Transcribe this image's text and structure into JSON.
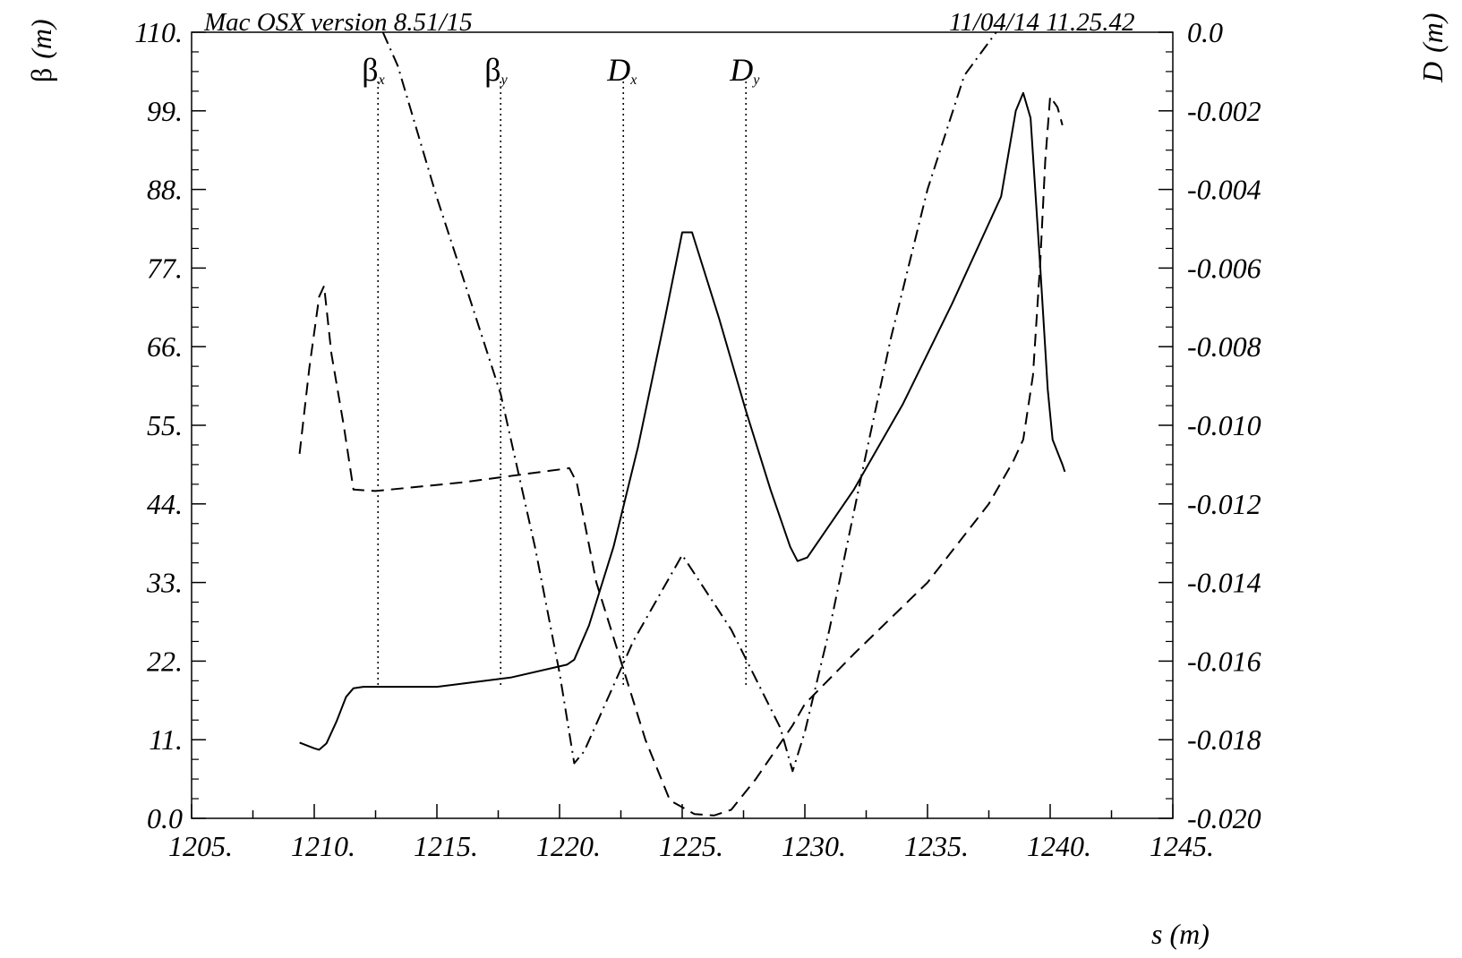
{
  "chart_data": {
    "type": "line",
    "header_left": "Mac OSX version 8.51/15",
    "header_right": "11/04/14  11.25.42",
    "xlabel": "s (m)",
    "ylabel_left_symbol": "β",
    "ylabel_left_unit": "(m)",
    "ylabel_right_symbol": "D",
    "ylabel_right_unit": "(m)",
    "xlim": [
      1205,
      1245
    ],
    "ylim_left": [
      0,
      110
    ],
    "ylim_right": [
      -0.02,
      0.0
    ],
    "x_ticks": [
      "1205.",
      "1210.",
      "1215.",
      "1220.",
      "1225.",
      "1230.",
      "1235.",
      "1240.",
      "1245."
    ],
    "y_left_ticks": [
      "0.0",
      "11.",
      "22.",
      "33.",
      "44.",
      "55.",
      "66.",
      "77.",
      "88.",
      "99.",
      "110."
    ],
    "y_right_ticks": [
      "-0.020",
      "-0.018",
      "-0.016",
      "-0.014",
      "-0.012",
      "-0.010",
      "-0.008",
      "-0.006",
      "-0.004",
      "-0.002",
      "0.0"
    ],
    "series": [
      {
        "name": "βx",
        "sub": "x",
        "style": "solid",
        "axis": "left",
        "label_x": 1212.6,
        "points": [
          [
            1209.4,
            10.6
          ],
          [
            1210.0,
            9.8
          ],
          [
            1210.2,
            9.6
          ],
          [
            1210.5,
            10.5
          ],
          [
            1210.9,
            13.5
          ],
          [
            1211.3,
            17.0
          ],
          [
            1211.6,
            18.2
          ],
          [
            1212.0,
            18.4
          ],
          [
            1215.0,
            18.4
          ],
          [
            1218.0,
            19.7
          ],
          [
            1220.3,
            21.5
          ],
          [
            1220.6,
            22.2
          ],
          [
            1221.2,
            27.0
          ],
          [
            1222.2,
            38.0
          ],
          [
            1223.2,
            52.0
          ],
          [
            1224.3,
            70.0
          ],
          [
            1225.0,
            82.0
          ],
          [
            1225.4,
            82.0
          ],
          [
            1226.5,
            70.0
          ],
          [
            1227.6,
            57.0
          ],
          [
            1228.6,
            46.0
          ],
          [
            1229.4,
            38.0
          ],
          [
            1229.7,
            36.0
          ],
          [
            1230.1,
            36.5
          ],
          [
            1232.0,
            46.0
          ],
          [
            1234.0,
            58.0
          ],
          [
            1236.0,
            72.0
          ],
          [
            1238.0,
            87.0
          ],
          [
            1238.6,
            99.0
          ],
          [
            1238.9,
            101.5
          ],
          [
            1239.2,
            98.0
          ],
          [
            1239.6,
            77.0
          ],
          [
            1239.9,
            60.0
          ],
          [
            1240.1,
            53.0
          ],
          [
            1240.5,
            49.5
          ],
          [
            1240.6,
            48.5
          ]
        ]
      },
      {
        "name": "βy",
        "sub": "y",
        "style": "dash",
        "axis": "left",
        "label_x": 1217.6,
        "points": [
          [
            1209.4,
            51.0
          ],
          [
            1209.8,
            63.0
          ],
          [
            1210.2,
            73.0
          ],
          [
            1210.4,
            74.5
          ],
          [
            1210.7,
            65.0
          ],
          [
            1211.2,
            55.0
          ],
          [
            1211.6,
            46.0
          ],
          [
            1212.5,
            45.8
          ],
          [
            1216.0,
            47.0
          ],
          [
            1220.4,
            49.0
          ],
          [
            1220.7,
            47.0
          ],
          [
            1221.5,
            33.0
          ],
          [
            1222.5,
            22.0
          ],
          [
            1223.5,
            11.0
          ],
          [
            1224.5,
            2.5
          ],
          [
            1225.5,
            0.6
          ],
          [
            1226.3,
            0.4
          ],
          [
            1227.0,
            1.2
          ],
          [
            1228.0,
            5.5
          ],
          [
            1229.5,
            13.0
          ],
          [
            1230.0,
            16.0
          ],
          [
            1232.0,
            23.0
          ],
          [
            1235.0,
            33.0
          ],
          [
            1237.5,
            44.0
          ],
          [
            1238.5,
            50.0
          ],
          [
            1238.9,
            53.0
          ],
          [
            1239.3,
            62.0
          ],
          [
            1239.6,
            78.0
          ],
          [
            1239.8,
            92.0
          ],
          [
            1240.0,
            101.0
          ],
          [
            1240.3,
            99.5
          ],
          [
            1240.5,
            97.0
          ]
        ]
      },
      {
        "name": "Dx",
        "sub": "x",
        "style": "dashdot",
        "axis": "right",
        "label_x": 1222.6,
        "points": [
          [
            1212.8,
            0.0
          ],
          [
            1213.4,
            -0.00085
          ],
          [
            1215.0,
            -0.00421
          ],
          [
            1216.0,
            -0.00612
          ],
          [
            1217.6,
            -0.0092
          ],
          [
            1219.0,
            -0.0131
          ],
          [
            1220.0,
            -0.0163
          ],
          [
            1220.6,
            -0.0186
          ],
          [
            1221.0,
            -0.0183
          ],
          [
            1223.0,
            -0.0155
          ],
          [
            1225.0,
            -0.0133
          ],
          [
            1227.0,
            -0.0152
          ],
          [
            1229.0,
            -0.0177
          ],
          [
            1229.5,
            -0.0188
          ],
          [
            1230.0,
            -0.0178
          ],
          [
            1231.0,
            -0.0152
          ],
          [
            1232.4,
            -0.011
          ],
          [
            1233.5,
            -0.0078
          ],
          [
            1235.0,
            -0.004
          ],
          [
            1236.5,
            -0.0011
          ],
          [
            1237.8,
            0.0
          ]
        ]
      },
      {
        "name": "Dy",
        "sub": "y",
        "style": "dot",
        "axis": "right",
        "label_x": 1227.6,
        "points": []
      }
    ]
  }
}
